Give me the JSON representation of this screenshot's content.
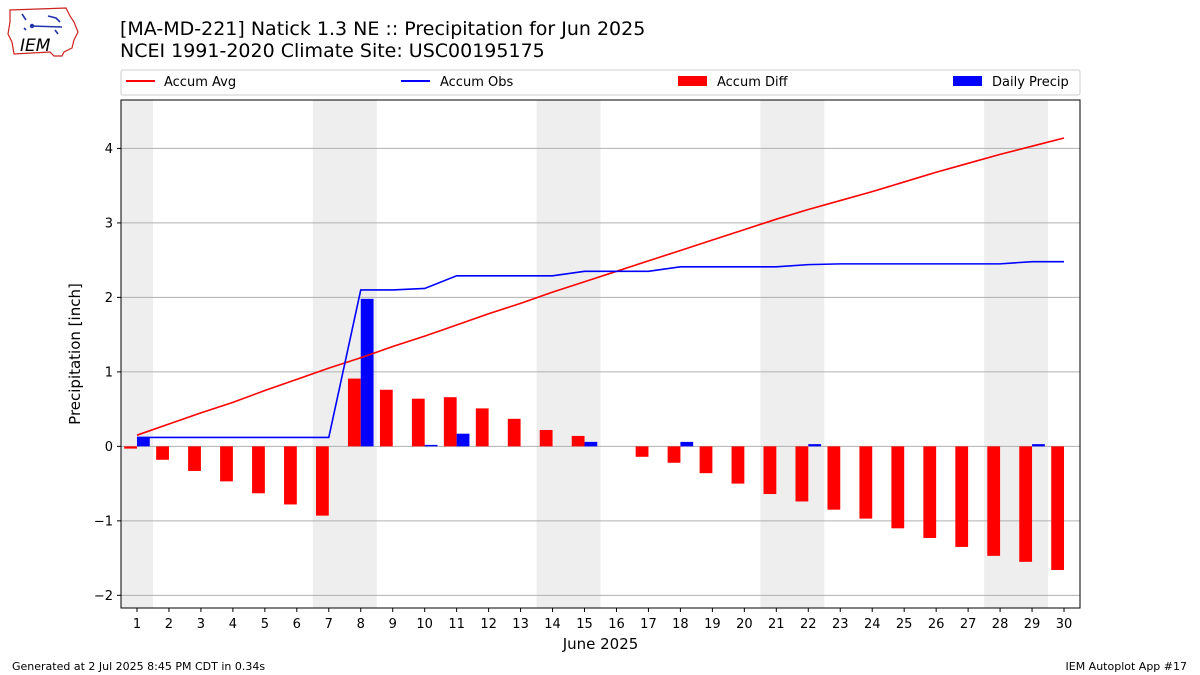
{
  "header": {
    "title_line_1": "[MA-MD-221] Natick 1.3 NE :: Precipitation for Jun 2025",
    "title_line_2": "NCEI 1991-2020 Climate Site: USC00195175"
  },
  "logo": {
    "text": "IEM",
    "icon": "iowa-state-outline-logo-icon",
    "color": "#cc2222"
  },
  "footer": {
    "left": "Generated at 2 Jul 2025 8:45 PM CDT in 0.34s",
    "right": "IEM Autoplot App #17"
  },
  "chart_data": {
    "type": "bar",
    "xlabel": "June 2025",
    "ylabel": "Precipitation [inch]",
    "xlim": [
      0.5,
      30.5
    ],
    "ylim": [
      -2.17,
      4.65
    ],
    "y_ticks": [
      -2,
      -1,
      0,
      1,
      2,
      3,
      4
    ],
    "y_tick_labels": [
      "−2",
      "−1",
      "0",
      "1",
      "2",
      "3",
      "4"
    ],
    "x_ticks": [
      1,
      2,
      3,
      4,
      5,
      6,
      7,
      8,
      9,
      10,
      11,
      12,
      13,
      14,
      15,
      16,
      17,
      18,
      19,
      20,
      21,
      22,
      23,
      24,
      25,
      26,
      27,
      28,
      29,
      30
    ],
    "x_tick_labels": [
      "1",
      "2",
      "3",
      "4",
      "5",
      "6",
      "7",
      "8",
      "9",
      "10",
      "11",
      "12",
      "13",
      "14",
      "15",
      "16",
      "17",
      "18",
      "19",
      "20",
      "21",
      "22",
      "23",
      "24",
      "25",
      "26",
      "27",
      "28",
      "29",
      "30"
    ],
    "grid": "horizontal",
    "legend_position": "top",
    "weekend_shading": [
      [
        0.5,
        1.5
      ],
      [
        6.5,
        8.5
      ],
      [
        13.5,
        15.5
      ],
      [
        20.5,
        22.5
      ],
      [
        27.5,
        29.5
      ]
    ],
    "weekend_color": "#eeeeee",
    "days": [
      1,
      2,
      3,
      4,
      5,
      6,
      7,
      8,
      9,
      10,
      11,
      12,
      13,
      14,
      15,
      16,
      17,
      18,
      19,
      20,
      21,
      22,
      23,
      24,
      25,
      26,
      27,
      28,
      29,
      30
    ],
    "series": [
      {
        "name": "Accum Avg",
        "kind": "line",
        "color": "#ff0000",
        "values": [
          0.15,
          0.3,
          0.45,
          0.59,
          0.75,
          0.9,
          1.05,
          1.19,
          1.34,
          1.48,
          1.63,
          1.78,
          1.92,
          2.07,
          2.21,
          2.35,
          2.49,
          2.63,
          2.77,
          2.91,
          3.05,
          3.18,
          3.3,
          3.42,
          3.55,
          3.68,
          3.8,
          3.92,
          4.03,
          4.14
        ]
      },
      {
        "name": "Accum Obs",
        "kind": "line",
        "color": "#0000ff",
        "values": [
          0.12,
          0.12,
          0.12,
          0.12,
          0.12,
          0.12,
          0.12,
          2.1,
          2.1,
          2.12,
          2.29,
          2.29,
          2.29,
          2.29,
          2.35,
          2.35,
          2.35,
          2.41,
          2.41,
          2.41,
          2.41,
          2.44,
          2.45,
          2.45,
          2.45,
          2.45,
          2.45,
          2.45,
          2.48,
          2.48
        ]
      },
      {
        "name": "Accum Diff",
        "kind": "bar",
        "color": "#ff0000",
        "values": [
          -0.03,
          -0.18,
          -0.33,
          -0.47,
          -0.63,
          -0.78,
          -0.93,
          0.91,
          0.76,
          0.64,
          0.66,
          0.51,
          0.37,
          0.22,
          0.14,
          0.0,
          -0.14,
          -0.22,
          -0.36,
          -0.5,
          -0.64,
          -0.74,
          -0.85,
          -0.97,
          -1.1,
          -1.23,
          -1.35,
          -1.47,
          -1.55,
          -1.66
        ]
      },
      {
        "name": "Daily Precip",
        "kind": "bar",
        "color": "#0000ff",
        "values": [
          0.12,
          0.0,
          0.0,
          0.0,
          0.0,
          0.0,
          0.0,
          1.98,
          0.0,
          0.02,
          0.17,
          0.0,
          0.0,
          0.0,
          0.06,
          0.0,
          0.0,
          0.06,
          0.0,
          0.0,
          0.0,
          0.03,
          0.0,
          0.0,
          0.0,
          0.0,
          0.0,
          0.0,
          0.03,
          0.0
        ]
      }
    ]
  }
}
